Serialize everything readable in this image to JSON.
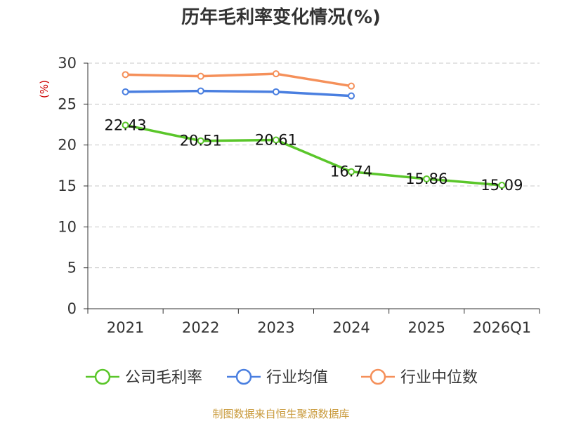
{
  "chart_data": {
    "type": "line",
    "title": "历年毛利率变化情况(%)",
    "ylabel": "(%)",
    "xlabel": "",
    "categories": [
      "2021",
      "2022",
      "2023",
      "2024",
      "2025",
      "2026Q1"
    ],
    "ylim": [
      0,
      30
    ],
    "yticks": [
      0,
      5,
      10,
      15,
      20,
      25,
      30
    ],
    "grid": true,
    "legend_position": "bottom",
    "series": [
      {
        "name": "公司毛利率",
        "color": "#5ac62a",
        "values": [
          22.43,
          20.51,
          20.61,
          16.74,
          15.86,
          15.09
        ],
        "labels": [
          "22.43",
          "20.51",
          "20.61",
          "16.74",
          "15.86",
          "15.09"
        ]
      },
      {
        "name": "行业均值",
        "color": "#4a7fe0",
        "values": [
          26.5,
          26.6,
          26.5,
          26.0,
          null,
          null
        ]
      },
      {
        "name": "行业中位数",
        "color": "#f5905a",
        "values": [
          28.6,
          28.4,
          28.7,
          27.2,
          null,
          null
        ]
      }
    ]
  },
  "source": "制图数据来自恒生聚源数据库"
}
